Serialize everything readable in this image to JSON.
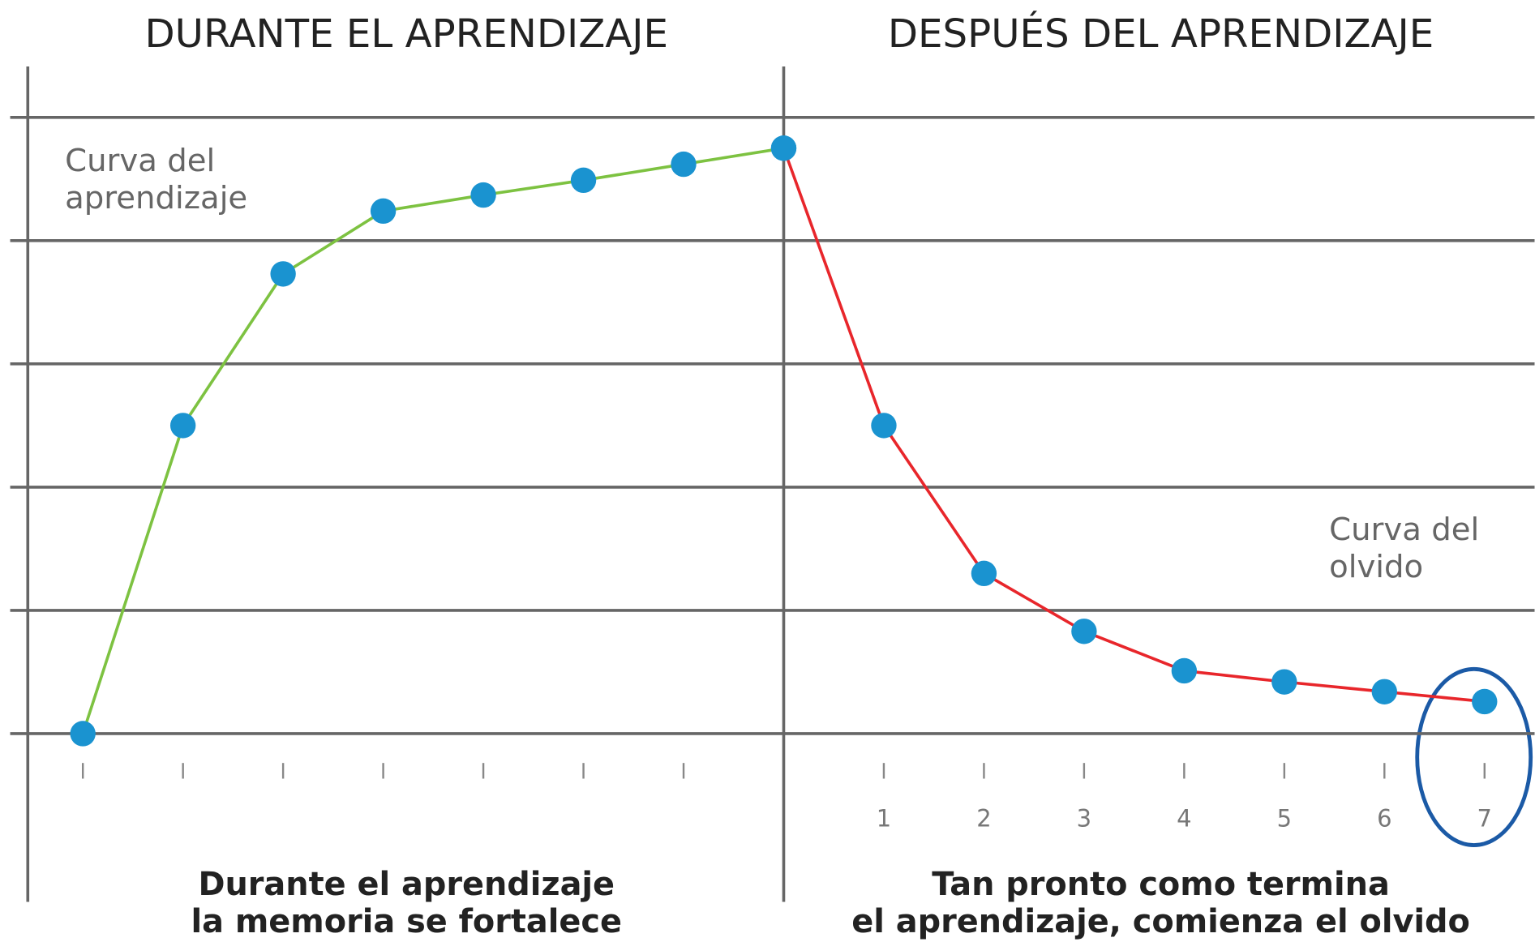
{
  "chart_data": {
    "type": "line",
    "section_titles": [
      "DURANTE EL APRENDIZAJE",
      "DESPUÉS DEL APRENDIZAJE"
    ],
    "annotations": [
      [
        "Curva del",
        "aprendizaje"
      ],
      [
        "Curva del",
        "olvido"
      ]
    ],
    "captions": [
      [
        "Durante el aprendizaje",
        "la memoria se fortalece"
      ],
      [
        "Tan pronto como termina",
        "el aprendizaje, comienza el olvido"
      ]
    ],
    "series": [
      {
        "color": "#7dc241",
        "x": [
          0,
          1,
          2,
          3,
          4,
          5,
          6,
          7
        ],
        "values": [
          0,
          2.5,
          3.73,
          4.24,
          4.37,
          4.49,
          4.62,
          4.75
        ]
      },
      {
        "color": "#e8262b",
        "x": [
          7,
          8,
          9,
          10,
          11,
          12,
          13,
          14
        ],
        "values": [
          4.75,
          2.5,
          1.3,
          0.83,
          0.51,
          0.42,
          0.34,
          0.26
        ]
      }
    ],
    "marker_color": "#1a93d0",
    "xlim": [
      -0.55,
      14.5
    ],
    "minor_xticks": [
      0,
      1,
      2,
      3,
      4,
      5,
      6
    ],
    "xticks": [
      {
        "value": 8,
        "label": "1"
      },
      {
        "value": 9,
        "label": "2"
      },
      {
        "value": 10,
        "label": "3"
      },
      {
        "value": 11,
        "label": "4"
      },
      {
        "value": 12,
        "label": "5"
      },
      {
        "value": 13,
        "label": "6"
      },
      {
        "value": 14,
        "label": "7"
      }
    ],
    "divider_x": 7,
    "ylim": [
      0,
      5
    ],
    "yticks": [
      0,
      1,
      2,
      3,
      4,
      5
    ],
    "grid": true
  }
}
